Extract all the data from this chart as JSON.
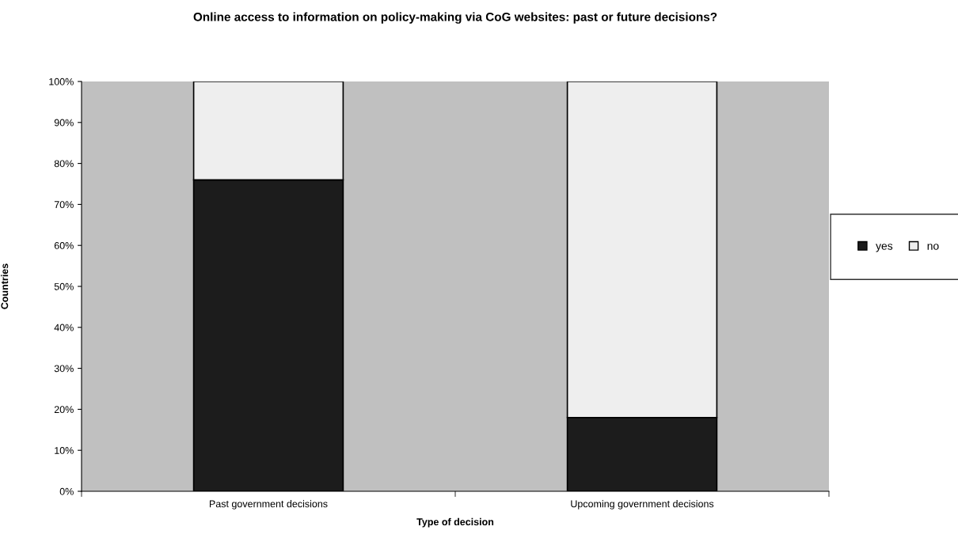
{
  "chart_data": {
    "type": "bar",
    "title": "Online access to information on policy-making via CoG websites: past or future decisions?",
    "xlabel": "Type of decision",
    "ylabel": "Countries",
    "categories": [
      "Past government decisions",
      "Upcoming government decisions"
    ],
    "series": [
      {
        "name": "yes",
        "color": "#1c1c1c",
        "values": [
          76,
          18
        ]
      },
      {
        "name": "no",
        "color": "#eeeeee",
        "values": [
          24,
          82
        ]
      }
    ],
    "stacked": true,
    "ylim": [
      0,
      100
    ],
    "yticks": [
      {
        "value": 0,
        "label": "0%"
      },
      {
        "value": 10,
        "label": "10%"
      },
      {
        "value": 20,
        "label": "20%"
      },
      {
        "value": 30,
        "label": "30%"
      },
      {
        "value": 40,
        "label": "40%"
      },
      {
        "value": 50,
        "label": "50%"
      },
      {
        "value": 60,
        "label": "60%"
      },
      {
        "value": 70,
        "label": "70%"
      },
      {
        "value": 80,
        "label": "80%"
      },
      {
        "value": 90,
        "label": "90%"
      },
      {
        "value": 100,
        "label": "100%"
      }
    ],
    "grid": false,
    "legend": "right"
  }
}
